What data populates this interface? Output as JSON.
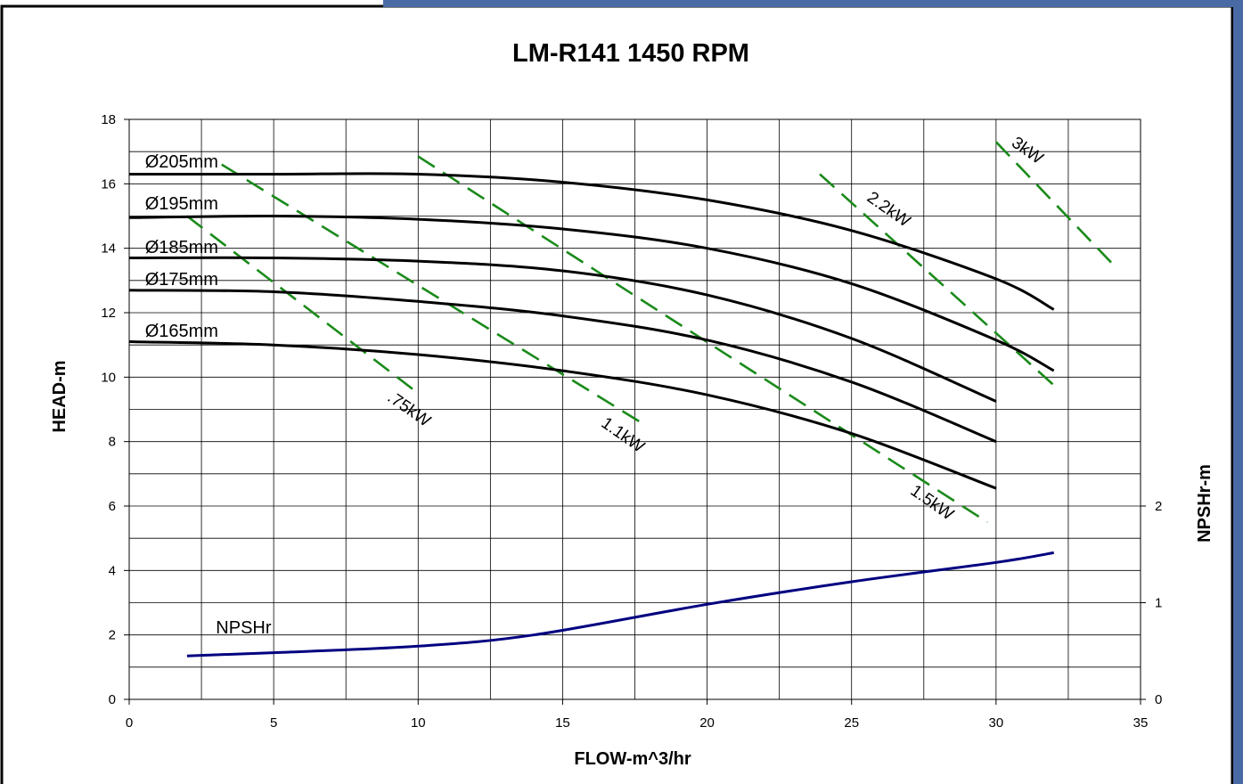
{
  "theme": {
    "frame_border": "#000000",
    "top_bar_accent": "#4a6aa5",
    "right_bar_accent": "#4a6aa5",
    "head_curve_color": "#000000",
    "power_line_color": "#1a8a1a",
    "npsh_curve_color": "#000080",
    "grid_color": "#000000"
  },
  "chart_data": {
    "type": "line",
    "title": "LM-R141 1450 RPM",
    "xlabel": "FLOW-m^3/hr",
    "ylabel": "HEAD-m",
    "y2label": "NPSHr-m",
    "xlim": [
      0,
      35
    ],
    "ylim": [
      0,
      18
    ],
    "y2lim": [
      0,
      6
    ],
    "grid": true,
    "x_ticks": [
      0,
      5,
      10,
      15,
      20,
      25,
      30,
      35
    ],
    "y_ticks": [
      0,
      2,
      4,
      6,
      8,
      10,
      12,
      14,
      16,
      18
    ],
    "y2_ticks": [
      0,
      1,
      2
    ],
    "x_tick_labels": [
      "0",
      "5",
      "10",
      "15",
      "20",
      "25",
      "30",
      "35"
    ],
    "y_tick_labels": [
      "0",
      "2",
      "4",
      "6",
      "8",
      "10",
      "12",
      "14",
      "16",
      "18"
    ],
    "y2_tick_labels": [
      "0",
      "1",
      "2"
    ],
    "head_curves": [
      {
        "name": "Ø205mm",
        "label_at": [
          0.3,
          16.7
        ],
        "x": [
          0,
          5,
          10,
          15,
          20,
          25,
          30,
          32
        ],
        "y": [
          16.3,
          16.3,
          16.3,
          16.05,
          15.5,
          14.55,
          13.05,
          12.1
        ]
      },
      {
        "name": "Ø195mm",
        "label_at": [
          0.3,
          15.4
        ],
        "x": [
          0,
          5,
          10,
          15,
          20,
          25,
          30,
          32
        ],
        "y": [
          14.95,
          15.0,
          14.9,
          14.6,
          14.0,
          12.9,
          11.15,
          10.2
        ]
      },
      {
        "name": "Ø185mm",
        "label_at": [
          0.3,
          14.05
        ],
        "x": [
          0,
          5,
          10,
          15,
          20,
          25,
          30
        ],
        "y": [
          13.7,
          13.7,
          13.6,
          13.3,
          12.55,
          11.2,
          9.25
        ]
      },
      {
        "name": "Ø175mm",
        "label_at": [
          0.3,
          13.05
        ],
        "x": [
          0,
          5,
          10,
          15,
          20,
          25,
          30
        ],
        "y": [
          12.7,
          12.65,
          12.35,
          11.9,
          11.15,
          9.85,
          8.0
        ]
      },
      {
        "name": "Ø165mm",
        "label_at": [
          0.3,
          11.45
        ],
        "x": [
          0,
          5,
          10,
          15,
          20,
          25,
          30
        ],
        "y": [
          11.1,
          11.0,
          10.7,
          10.2,
          9.45,
          8.25,
          6.55
        ]
      }
    ],
    "power_lines": [
      {
        "name": ".75kW",
        "x": [
          2.0,
          10.0
        ],
        "y": [
          15.0,
          9.5
        ],
        "label_at": [
          8.9,
          9.3
        ],
        "label_angle": 35
      },
      {
        "name": "1.1kW",
        "x": [
          3.2,
          17.7
        ],
        "y": [
          16.6,
          8.6
        ],
        "label_at": [
          16.3,
          8.5
        ],
        "label_angle": 35
      },
      {
        "name": "1.5kW",
        "x": [
          10.0,
          29.7
        ],
        "y": [
          16.85,
          5.5
        ],
        "label_at": [
          27.0,
          6.4
        ],
        "label_angle": 35
      },
      {
        "name": "2.2kW",
        "x": [
          23.9,
          32.0
        ],
        "y": [
          16.3,
          9.75
        ],
        "label_at": [
          25.5,
          15.5
        ],
        "label_angle": 35
      },
      {
        "name": "3kW",
        "x": [
          30.0,
          34.1
        ],
        "y": [
          17.3,
          13.45
        ],
        "label_at": [
          30.5,
          17.2
        ],
        "label_angle": 35
      }
    ],
    "npsh_curve": {
      "name": "NPSHr",
      "label_at": [
        3.0,
        2.05
      ],
      "x": [
        2,
        5,
        10,
        14,
        20,
        25,
        30,
        32
      ],
      "y": [
        1.35,
        1.45,
        1.65,
        2.0,
        2.95,
        3.65,
        4.25,
        4.55
      ]
    }
  }
}
